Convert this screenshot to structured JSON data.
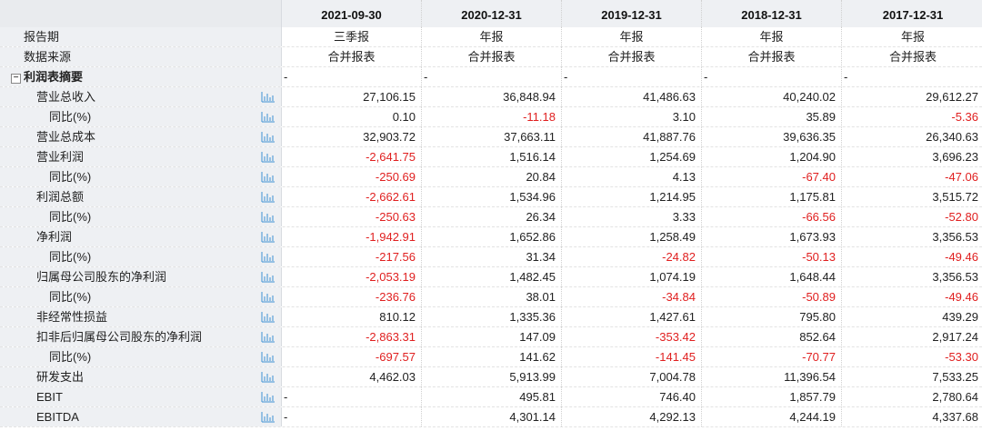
{
  "columns": [
    {
      "date": "2021-09-30",
      "report": "三季报",
      "source": "合并报表"
    },
    {
      "date": "2020-12-31",
      "report": "年报",
      "source": "合并报表"
    },
    {
      "date": "2019-12-31",
      "report": "年报",
      "source": "合并报表"
    },
    {
      "date": "2018-12-31",
      "report": "年报",
      "source": "合并报表"
    },
    {
      "date": "2017-12-31",
      "report": "年报",
      "source": "合并报表"
    }
  ],
  "meta_labels": {
    "period": "报告期",
    "source": "数据来源"
  },
  "section": {
    "label": "利润表摘要",
    "toggle": "⊟",
    "placeholder": "-"
  },
  "rows": [
    {
      "label": "营业总收入",
      "level": 0,
      "values": [
        "27,106.15",
        "36,848.94",
        "41,486.63",
        "40,240.02",
        "29,612.27"
      ]
    },
    {
      "label": "同比(%)",
      "level": 1,
      "values": [
        "0.10",
        "-11.18",
        "3.10",
        "35.89",
        "-5.36"
      ]
    },
    {
      "label": "营业总成本",
      "level": 0,
      "values": [
        "32,903.72",
        "37,663.11",
        "41,887.76",
        "39,636.35",
        "26,340.63"
      ]
    },
    {
      "label": "营业利润",
      "level": 0,
      "values": [
        "-2,641.75",
        "1,516.14",
        "1,254.69",
        "1,204.90",
        "3,696.23"
      ]
    },
    {
      "label": "同比(%)",
      "level": 1,
      "values": [
        "-250.69",
        "20.84",
        "4.13",
        "-67.40",
        "-47.06"
      ]
    },
    {
      "label": "利润总额",
      "level": 0,
      "values": [
        "-2,662.61",
        "1,534.96",
        "1,214.95",
        "1,175.81",
        "3,515.72"
      ]
    },
    {
      "label": "同比(%)",
      "level": 1,
      "values": [
        "-250.63",
        "26.34",
        "3.33",
        "-66.56",
        "-52.80"
      ]
    },
    {
      "label": "净利润",
      "level": 0,
      "values": [
        "-1,942.91",
        "1,652.86",
        "1,258.49",
        "1,673.93",
        "3,356.53"
      ]
    },
    {
      "label": "同比(%)",
      "level": 1,
      "values": [
        "-217.56",
        "31.34",
        "-24.82",
        "-50.13",
        "-49.46"
      ]
    },
    {
      "label": "归属母公司股东的净利润",
      "level": 0,
      "values": [
        "-2,053.19",
        "1,482.45",
        "1,074.19",
        "1,648.44",
        "3,356.53"
      ]
    },
    {
      "label": "同比(%)",
      "level": 1,
      "values": [
        "-236.76",
        "38.01",
        "-34.84",
        "-50.89",
        "-49.46"
      ]
    },
    {
      "label": "非经常性损益",
      "level": 0,
      "values": [
        "810.12",
        "1,335.36",
        "1,427.61",
        "795.80",
        "439.29"
      ]
    },
    {
      "label": "扣非后归属母公司股东的净利润",
      "level": 0,
      "values": [
        "-2,863.31",
        "147.09",
        "-353.42",
        "852.64",
        "2,917.24"
      ]
    },
    {
      "label": "同比(%)",
      "level": 1,
      "values": [
        "-697.57",
        "141.62",
        "-141.45",
        "-70.77",
        "-53.30"
      ]
    },
    {
      "label": "研发支出",
      "level": 0,
      "values": [
        "4,462.03",
        "5,913.99",
        "7,004.78",
        "11,396.54",
        "7,533.25"
      ]
    },
    {
      "label": "EBIT",
      "level": 0,
      "values": [
        "-",
        "495.81",
        "746.40",
        "1,857.79",
        "2,780.64"
      ]
    },
    {
      "label": "EBITDA",
      "level": 0,
      "values": [
        "-",
        "4,301.14",
        "4,292.13",
        "4,244.19",
        "4,337.68"
      ]
    }
  ],
  "colors": {
    "negative": "#e02020",
    "label_bg": "#eef0f3",
    "icon": "#5aa0d8"
  },
  "icons": {
    "row_chart": "bar-chart-icon"
  }
}
